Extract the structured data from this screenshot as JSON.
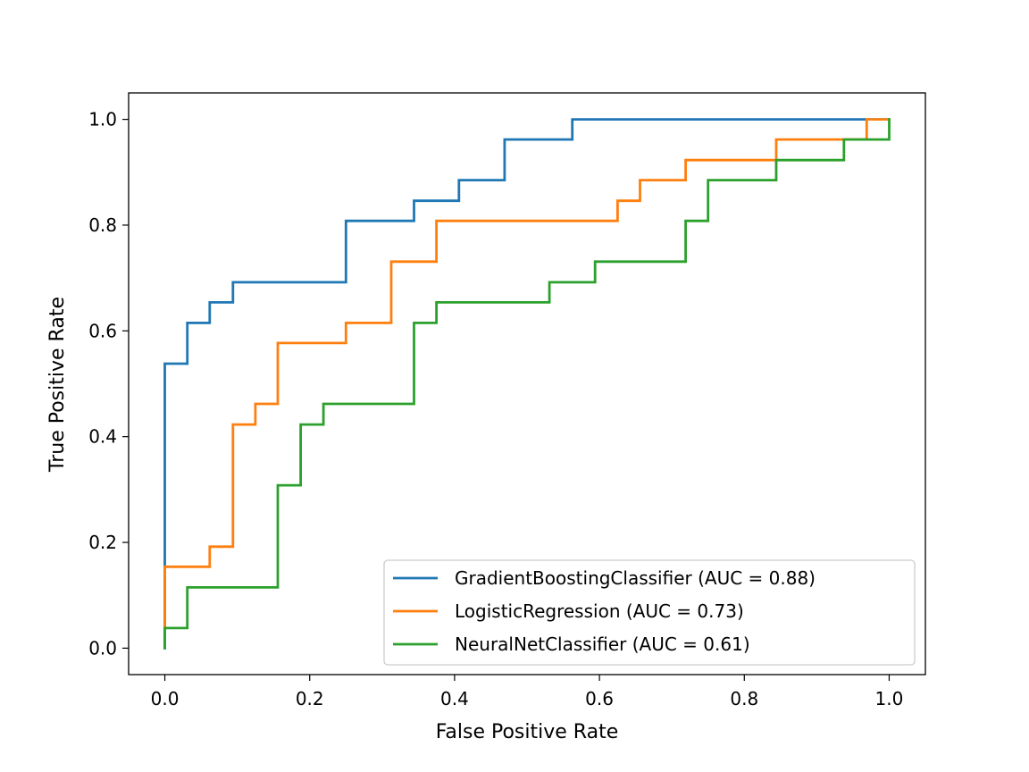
{
  "chart_data": {
    "type": "line",
    "title": "",
    "xlabel": "False Positive Rate",
    "ylabel": "True Positive Rate",
    "xlim": [
      -0.05,
      1.05
    ],
    "ylim": [
      -0.05,
      1.05
    ],
    "xticks": [
      "0.0",
      "0.2",
      "0.4",
      "0.6",
      "0.8",
      "1.0"
    ],
    "yticks": [
      "0.0",
      "0.2",
      "0.4",
      "0.6",
      "0.8",
      "1.0"
    ],
    "grid": false,
    "legend_position": "lower-right",
    "series": [
      {
        "name": "GradientBoostingClassifier (AUC = 0.88)",
        "color": "#1f77b4",
        "x": [
          0.0,
          0.0,
          0.031,
          0.031,
          0.062,
          0.062,
          0.094,
          0.094,
          0.25,
          0.25,
          0.344,
          0.344,
          0.406,
          0.406,
          0.469,
          0.469,
          0.5625,
          0.5625,
          0.969,
          0.969,
          1.0
        ],
        "y": [
          0.0,
          0.538,
          0.538,
          0.615,
          0.615,
          0.654,
          0.654,
          0.692,
          0.692,
          0.808,
          0.808,
          0.846,
          0.846,
          0.885,
          0.885,
          0.962,
          0.962,
          1.0,
          1.0,
          1.0,
          1.0
        ]
      },
      {
        "name": "LogisticRegression (AUC = 0.73)",
        "color": "#ff7f0e",
        "x": [
          0.0,
          0.0,
          0.062,
          0.062,
          0.094,
          0.094,
          0.125,
          0.125,
          0.156,
          0.156,
          0.25,
          0.25,
          0.3125,
          0.3125,
          0.375,
          0.375,
          0.625,
          0.625,
          0.656,
          0.656,
          0.719,
          0.719,
          0.844,
          0.844,
          0.969,
          0.969,
          1.0
        ],
        "y": [
          0.038,
          0.154,
          0.154,
          0.192,
          0.192,
          0.423,
          0.423,
          0.462,
          0.462,
          0.577,
          0.577,
          0.615,
          0.615,
          0.731,
          0.731,
          0.808,
          0.808,
          0.846,
          0.846,
          0.885,
          0.885,
          0.923,
          0.923,
          0.962,
          0.962,
          1.0,
          1.0
        ]
      },
      {
        "name": "NeuralNetClassifier (AUC = 0.61)",
        "color": "#2ca02c",
        "x": [
          0.0,
          0.0,
          0.031,
          0.031,
          0.156,
          0.156,
          0.1875,
          0.1875,
          0.219,
          0.219,
          0.344,
          0.344,
          0.375,
          0.375,
          0.531,
          0.531,
          0.594,
          0.594,
          0.719,
          0.719,
          0.75,
          0.75,
          0.844,
          0.844,
          0.9375,
          0.9375,
          1.0,
          1.0
        ],
        "y": [
          0.0,
          0.038,
          0.038,
          0.115,
          0.115,
          0.308,
          0.308,
          0.423,
          0.423,
          0.462,
          0.462,
          0.615,
          0.615,
          0.654,
          0.654,
          0.692,
          0.692,
          0.731,
          0.731,
          0.808,
          0.808,
          0.885,
          0.885,
          0.923,
          0.923,
          0.962,
          0.962,
          1.0
        ]
      }
    ]
  }
}
